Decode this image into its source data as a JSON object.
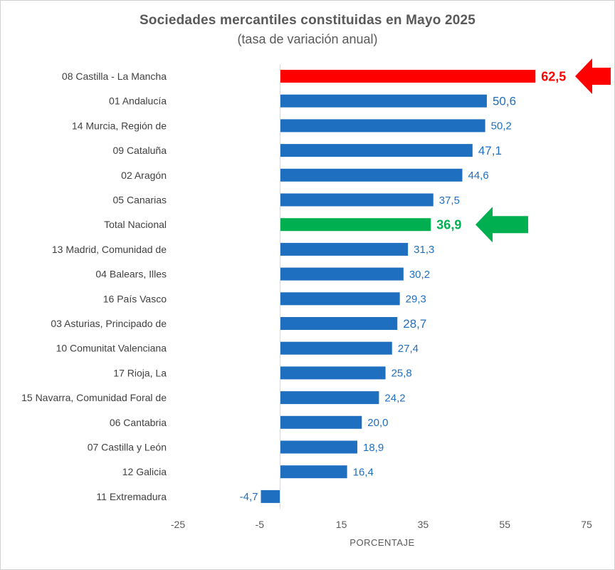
{
  "title": "Sociedades  mercantiles  constituidas  en Mayo 2025",
  "subtitle": "(tasa de variación anual)",
  "chart_data": {
    "type": "bar",
    "orientation": "horizontal",
    "title": "Sociedades  mercantiles  constituidas  en Mayo 2025",
    "subtitle": "(tasa de variación anual)",
    "xlabel": "PORCENTAJE",
    "ylabel": "",
    "xlim": [
      -25,
      75
    ],
    "xticks": [
      -25,
      -5,
      15,
      35,
      55,
      75
    ],
    "xtick_labels": [
      "-25",
      "-5",
      "15",
      "35",
      "55",
      "75"
    ],
    "grid": false,
    "legend": "none",
    "colors": {
      "default": "#1f6fc0",
      "highlight_max": "#ff0000",
      "national": "#00b050",
      "label_default": "#1f6fc0"
    },
    "categories": [
      "08 Castilla - La Mancha",
      "01 Andalucía",
      "14 Murcia, Región de",
      "09 Cataluña",
      "02 Aragón",
      "05 Canarias",
      "Total Nacional",
      "13 Madrid, Comunidad de",
      "04 Balears, Illes",
      "16 País Vasco",
      "03 Asturias, Principado de",
      "10 Comunitat Valenciana",
      "17 Rioja, La",
      "15 Navarra, Comunidad Foral de",
      "06 Cantabria",
      "07 Castilla y León",
      "12 Galicia",
      "11 Extremadura"
    ],
    "values": [
      62.5,
      50.6,
      50.2,
      47.1,
      44.6,
      37.5,
      36.9,
      31.3,
      30.2,
      29.3,
      28.7,
      27.4,
      25.8,
      24.2,
      20.0,
      18.9,
      16.4,
      -4.7
    ],
    "value_labels": [
      "62,5",
      "50,6",
      "50,2",
      "47,1",
      "44,6",
      "37,5",
      "36,9",
      "31,3",
      "30,2",
      "29,3",
      "28,7",
      "27,4",
      "25,8",
      "24,2",
      "20,0",
      "18,9",
      "16,4",
      "-4,7"
    ],
    "highlights": {
      "08 Castilla - La Mancha": "red-arrow",
      "Total Nacional": "green-arrow"
    }
  }
}
